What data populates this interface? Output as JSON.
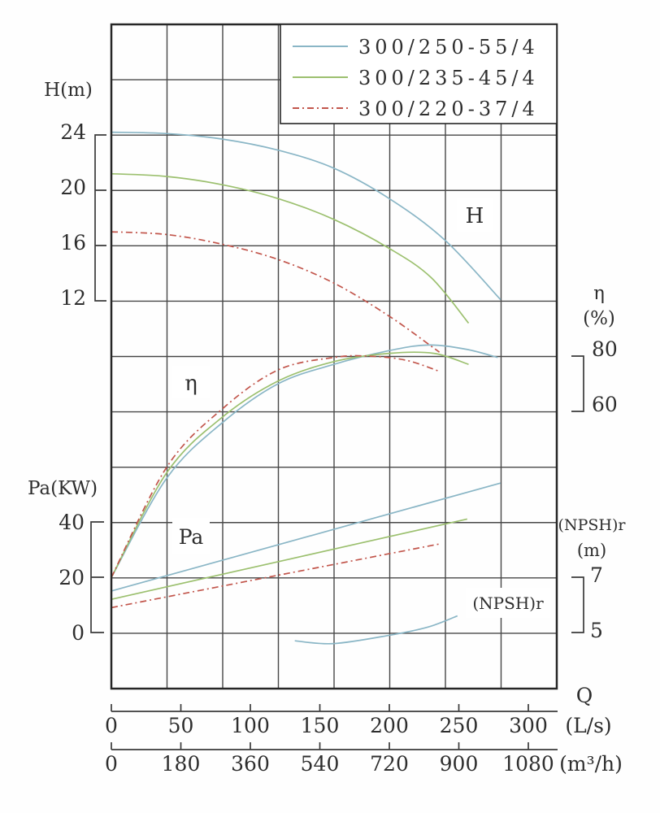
{
  "chart": {
    "labels": {
      "h_axis": "H(m)",
      "pa_axis": "Pa(KW)",
      "eta": "η",
      "eta_units": "(%)",
      "npsh": "(NPSH)r",
      "npsh_units": "(m)",
      "q": "Q",
      "q_units_ls": "(L/s)",
      "q_units_m3h": "(m³/h)",
      "box_h": "H",
      "box_eta": "η",
      "box_pa": "Pa",
      "box_npsh": "(NPSH)r"
    },
    "palette": {
      "blue": "#8ab6c6",
      "green": "#9cc06f",
      "red": "#c2564c",
      "grid": "#474747",
      "border": "#262626",
      "text": "#2e2e2e"
    }
  },
  "chart_data": {
    "type": "line",
    "title": "",
    "legend_position": "top-right",
    "grid": {
      "cols": 8,
      "rows": 12,
      "on": true
    },
    "x_axis": {
      "label": "Q",
      "range_Ls": [
        0,
        300
      ],
      "scales": [
        {
          "units": "(L/s)",
          "ticks": [
            0,
            50,
            100,
            150,
            200,
            250,
            300
          ]
        },
        {
          "units": "(m³/h)",
          "ticks": [
            0,
            180,
            360,
            540,
            720,
            900,
            1080
          ]
        }
      ]
    },
    "y_axes": [
      {
        "id": "H",
        "label": "H(m)",
        "side": "left",
        "ticks": [
          24,
          20,
          16,
          12
        ]
      },
      {
        "id": "eta",
        "label": "η (%)",
        "side": "right",
        "ticks": [
          80,
          60
        ]
      },
      {
        "id": "Pa",
        "label": "Pa(KW)",
        "side": "left",
        "ticks": [
          40,
          20,
          0
        ]
      },
      {
        "id": "NPSHr",
        "label": "(NPSH)r (m)",
        "side": "right",
        "ticks": [
          7,
          5
        ]
      }
    ],
    "legend": [
      {
        "label": "300/250-55/4",
        "color": "blue",
        "style": "solid"
      },
      {
        "label": "300/235-45/4",
        "color": "green",
        "style": "solid"
      },
      {
        "label": "300/220-37/4",
        "color": "red",
        "style": "dashdot"
      }
    ],
    "series": [
      {
        "name": "300/250-55/4",
        "quantity": "H",
        "color": "blue",
        "style": "solid",
        "points": [
          [
            0,
            24.2
          ],
          [
            40,
            24.1
          ],
          [
            80,
            23.7
          ],
          [
            120,
            22.9
          ],
          [
            160,
            21.6
          ],
          [
            200,
            19.4
          ],
          [
            240,
            16.4
          ],
          [
            280,
            12.1
          ]
        ]
      },
      {
        "name": "300/235-45/4",
        "quantity": "H",
        "color": "green",
        "style": "solid",
        "points": [
          [
            0,
            21.2
          ],
          [
            40,
            21.0
          ],
          [
            80,
            20.4
          ],
          [
            120,
            19.4
          ],
          [
            160,
            17.9
          ],
          [
            200,
            15.8
          ],
          [
            230,
            13.7
          ],
          [
            257,
            10.4
          ]
        ]
      },
      {
        "name": "300/220-37/4",
        "quantity": "H",
        "color": "red",
        "style": "dashdot",
        "points": [
          [
            0,
            17.0
          ],
          [
            40,
            16.8
          ],
          [
            80,
            16.1
          ],
          [
            120,
            15.0
          ],
          [
            160,
            13.3
          ],
          [
            200,
            10.9
          ],
          [
            236,
            8.3
          ]
        ]
      },
      {
        "name": "300/250-55/4",
        "quantity": "eta",
        "color": "blue",
        "style": "solid",
        "points": [
          [
            0,
            0
          ],
          [
            40,
            36
          ],
          [
            80,
            56
          ],
          [
            120,
            70
          ],
          [
            160,
            77
          ],
          [
            200,
            82
          ],
          [
            228,
            84
          ],
          [
            255,
            82.5
          ],
          [
            278,
            79.5
          ]
        ]
      },
      {
        "name": "300/235-45/4",
        "quantity": "eta",
        "color": "green",
        "style": "solid",
        "points": [
          [
            0,
            0
          ],
          [
            40,
            38
          ],
          [
            80,
            58
          ],
          [
            120,
            71
          ],
          [
            160,
            78
          ],
          [
            200,
            81
          ],
          [
            232,
            81
          ],
          [
            257,
            77
          ]
        ]
      },
      {
        "name": "300/220-37/4",
        "quantity": "eta",
        "color": "red",
        "style": "dashdot",
        "points": [
          [
            0,
            0
          ],
          [
            40,
            40
          ],
          [
            80,
            61
          ],
          [
            120,
            75
          ],
          [
            160,
            79.5
          ],
          [
            185,
            80
          ],
          [
            212,
            78.5
          ],
          [
            236,
            74.5
          ]
        ]
      },
      {
        "name": "300/250-55/4",
        "quantity": "Pa",
        "color": "blue",
        "style": "solid",
        "points": [
          [
            0,
            15
          ],
          [
            140,
            34.5
          ],
          [
            280,
            54
          ]
        ]
      },
      {
        "name": "300/235-45/4",
        "quantity": "Pa",
        "color": "green",
        "style": "solid",
        "points": [
          [
            0,
            12
          ],
          [
            128,
            26.5
          ],
          [
            256,
            41
          ]
        ]
      },
      {
        "name": "300/220-37/4",
        "quantity": "Pa",
        "color": "red",
        "style": "dashdot",
        "points": [
          [
            0,
            9
          ],
          [
            118,
            20.5
          ],
          [
            236,
            32
          ]
        ]
      },
      {
        "name": "300/250-55/4",
        "quantity": "NPSHr",
        "color": "blue",
        "style": "solid",
        "points": [
          [
            132,
            4.7
          ],
          [
            160,
            4.6
          ],
          [
            200,
            4.9
          ],
          [
            228,
            5.2
          ],
          [
            249,
            5.6
          ]
        ]
      }
    ]
  }
}
